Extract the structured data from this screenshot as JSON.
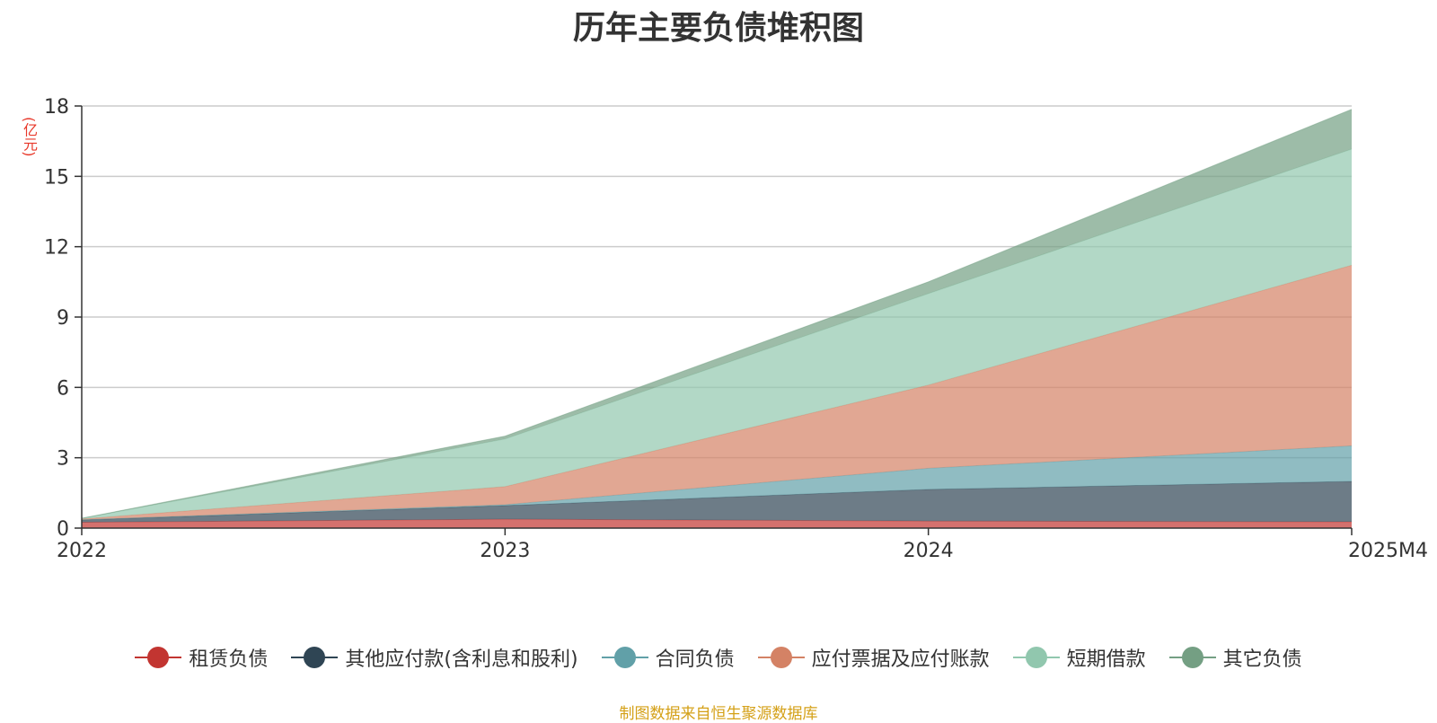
{
  "chart_data": {
    "type": "area",
    "stacked": true,
    "title": "历年主要负债堆积图",
    "unit_label": "(亿元)",
    "categories": [
      "2022",
      "2023",
      "2024",
      "2025M4"
    ],
    "ylim": [
      0,
      18
    ],
    "yticks": [
      "0",
      "3",
      "6",
      "9",
      "12",
      "15",
      "18"
    ],
    "grid": true,
    "legend_position": "bottom",
    "series": [
      {
        "name": "租赁负债",
        "color": "#c23531",
        "values": [
          0.25,
          0.38,
          0.3,
          0.27
        ]
      },
      {
        "name": "其他应付款(含利息和股利)",
        "color": "#2f4554",
        "values": [
          0.1,
          0.58,
          1.35,
          1.72
        ]
      },
      {
        "name": "合同负债",
        "color": "#61a0a8",
        "values": [
          0.01,
          0.04,
          0.9,
          1.52
        ]
      },
      {
        "name": "应付票据及应付账款",
        "color": "#d48265",
        "values": [
          0.03,
          0.77,
          3.55,
          7.7
        ]
      },
      {
        "name": "短期借款",
        "color": "#91c7ae",
        "values": [
          0.02,
          2.03,
          3.9,
          4.95
        ]
      },
      {
        "name": "其它负债",
        "color": "#749f83",
        "values": [
          0.01,
          0.12,
          0.5,
          1.7
        ]
      }
    ]
  },
  "footer": {
    "source": "制图数据来自恒生聚源数据库"
  }
}
